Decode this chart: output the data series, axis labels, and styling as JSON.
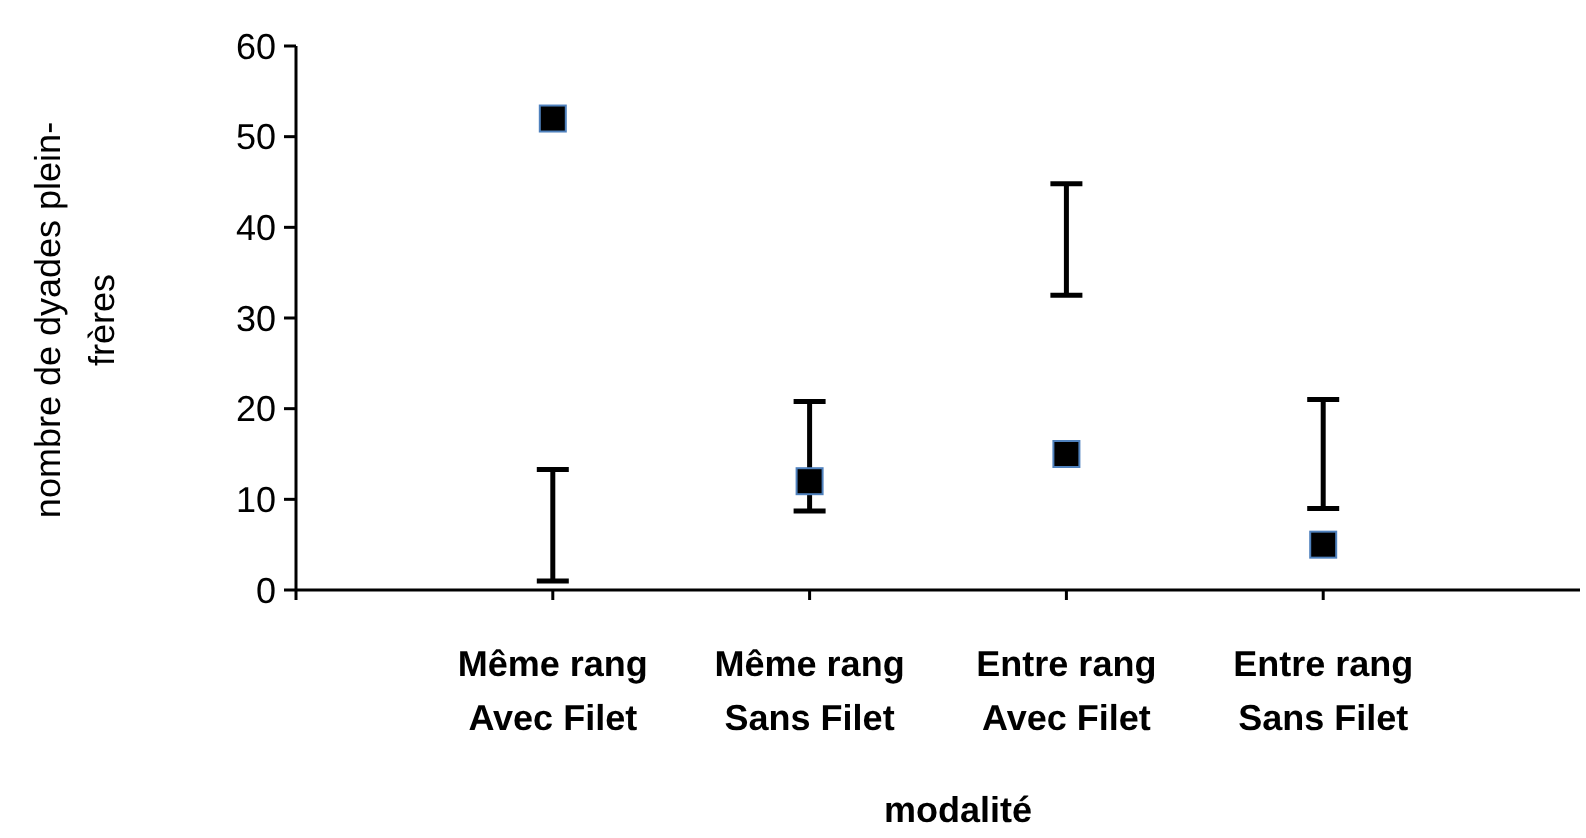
{
  "chart_data": {
    "type": "scatter",
    "xlabel": "modalité",
    "ylabel": "nombre de dyades plein-frères",
    "categories": [
      "Même rang Avec Filet",
      "Même rang Sans Filet",
      "Entre rang Avec Filet",
      "Entre rang Sans Filet"
    ],
    "series": [
      {
        "marker": "square",
        "color": "#000000",
        "values": [
          52,
          12,
          15,
          5
        ],
        "errors": [
          [
            1,
            13.3
          ],
          [
            8.7,
            20.8
          ],
          [
            32.5,
            44.8
          ],
          [
            9,
            21
          ]
        ]
      }
    ],
    "ylim": [
      0,
      60
    ],
    "yticks": [
      0,
      10,
      20,
      30,
      40,
      50,
      60
    ],
    "grid": false
  }
}
